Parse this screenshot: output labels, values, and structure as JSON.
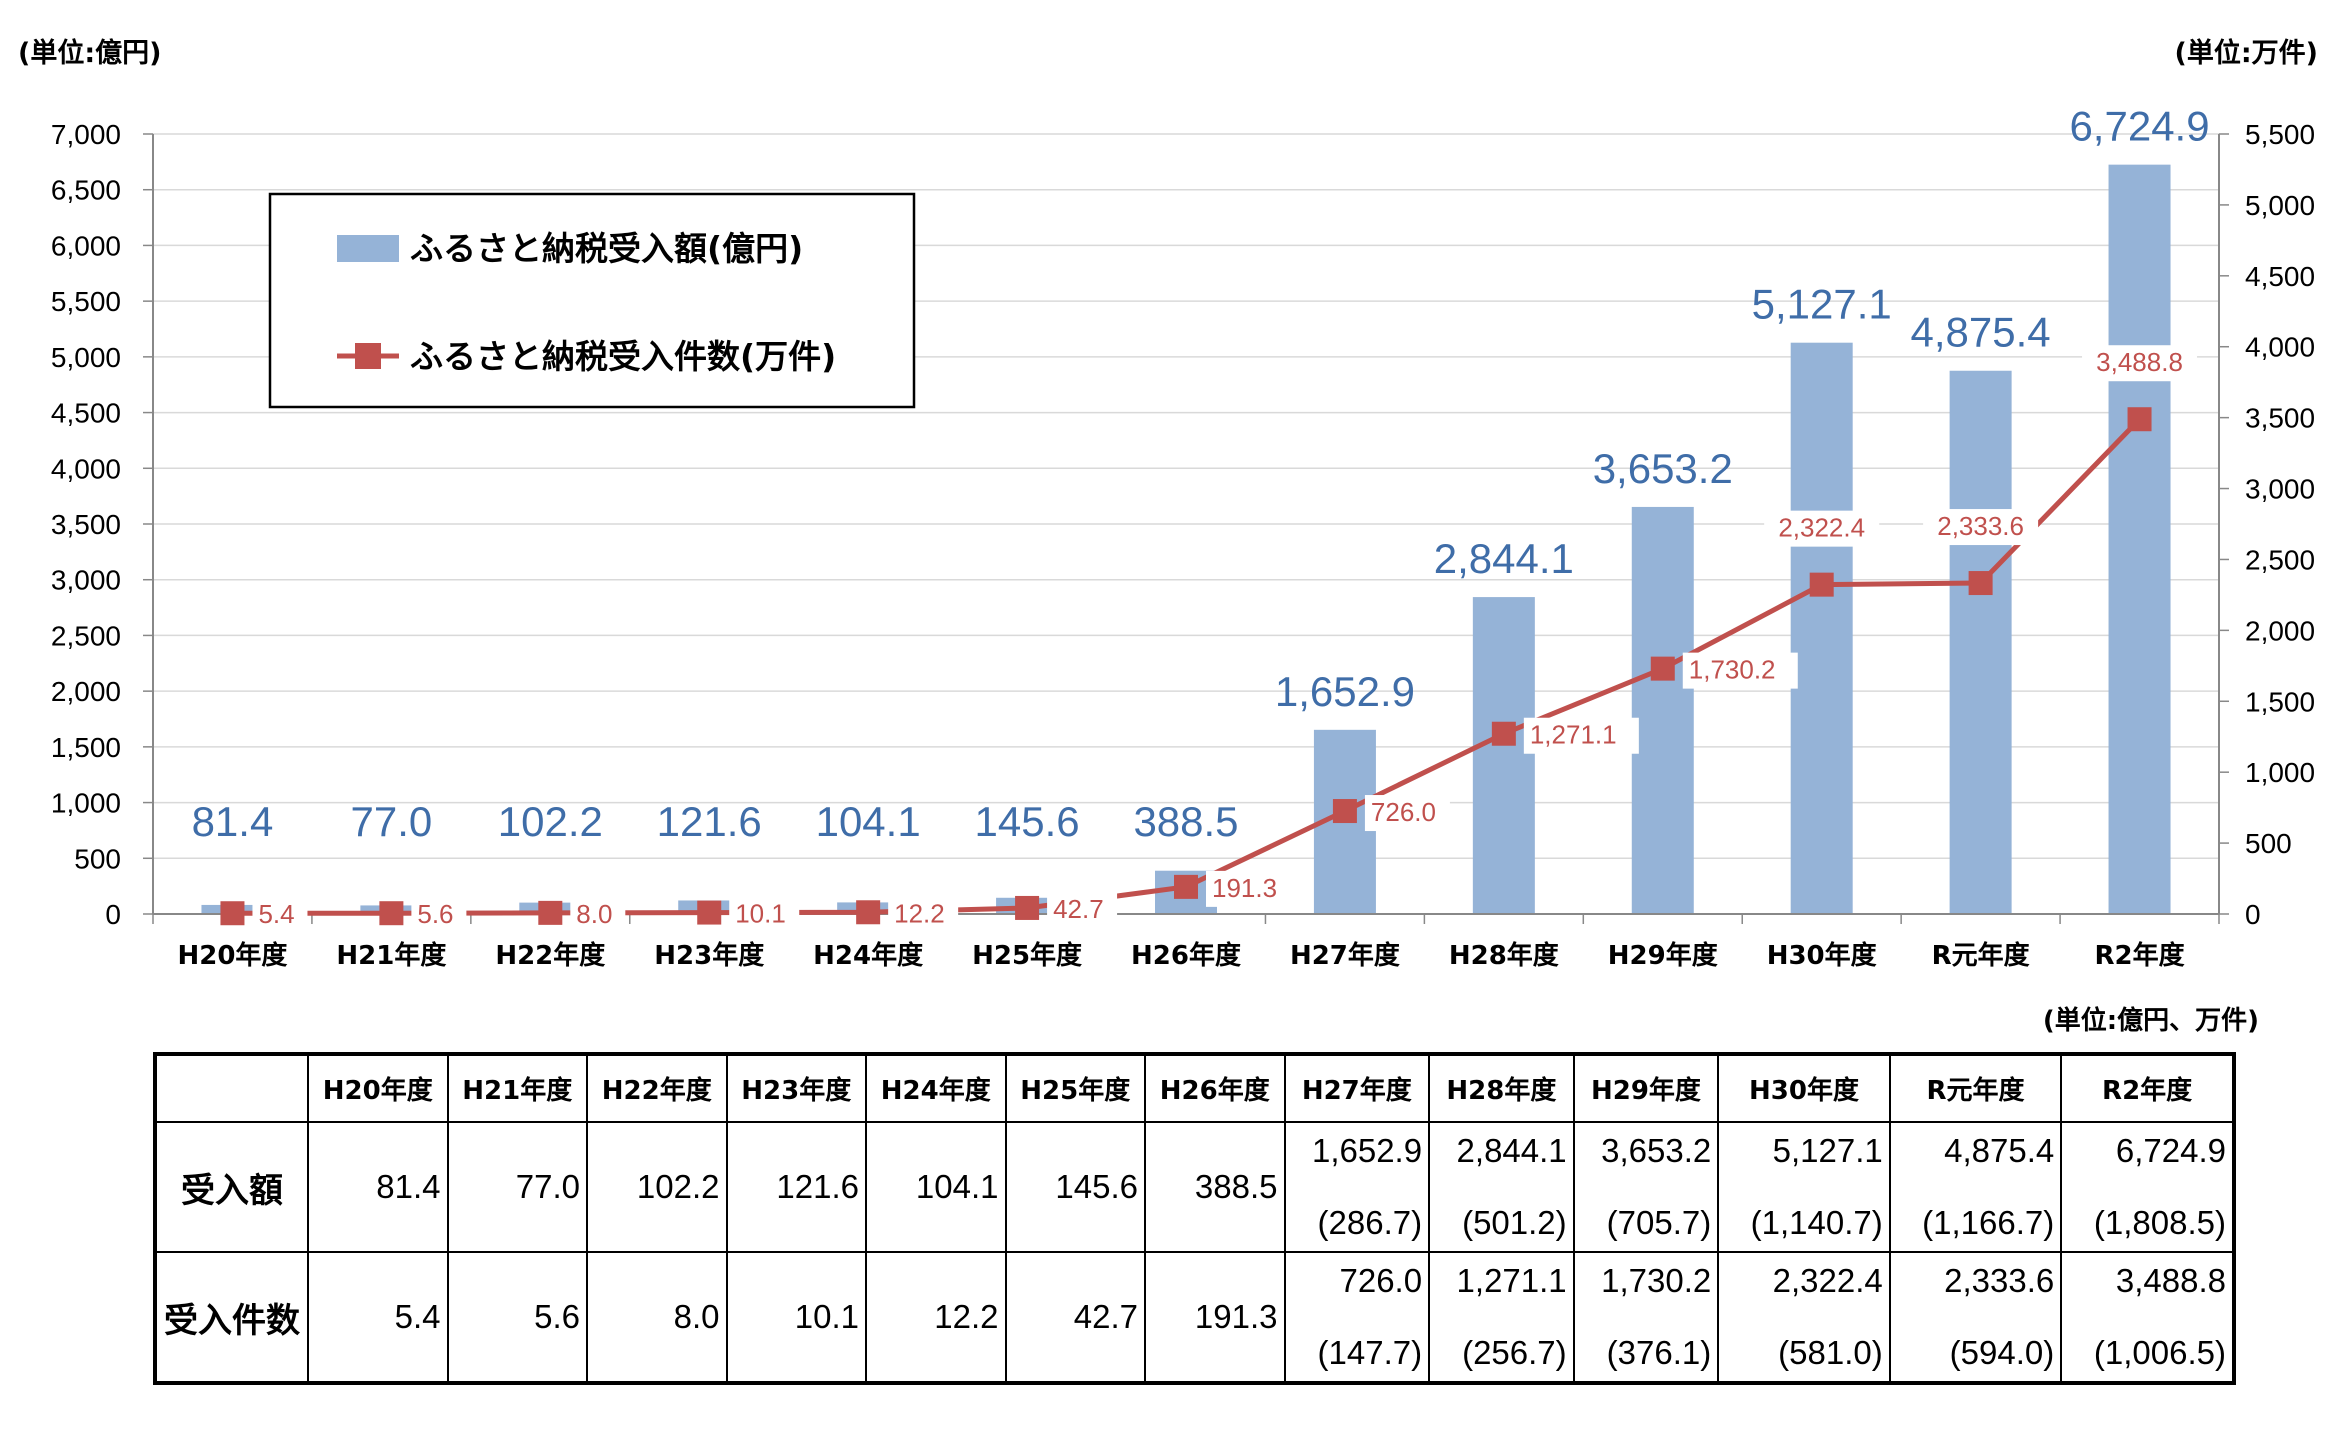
{
  "units": {
    "left": "(単位:億円)",
    "right": "(単位:万件)",
    "table": "(単位:億円、万件)"
  },
  "legend": {
    "bar": "ふるさと納税受入額(億円)",
    "line": "ふるさと納税受入件数(万件)"
  },
  "colors": {
    "bar": "#95B3D7",
    "bar_label": "#3F6DA8",
    "line": "#C0504D",
    "line_label": "#C0504D"
  },
  "chart_data": {
    "type": "bar",
    "categories": [
      "H20年度",
      "H21年度",
      "H22年度",
      "H23年度",
      "H24年度",
      "H25年度",
      "H26年度",
      "H27年度",
      "H28年度",
      "H29年度",
      "H30年度",
      "R元年度",
      "R2年度"
    ],
    "series": [
      {
        "name": "ふるさと納税受入額(億円)",
        "type": "bar",
        "axis": "left",
        "values": [
          81.4,
          77.0,
          102.2,
          121.6,
          104.1,
          145.6,
          388.5,
          1652.9,
          2844.1,
          3653.2,
          5127.1,
          4875.4,
          6724.9
        ],
        "labels": [
          "81.4",
          "77.0",
          "102.2",
          "121.6",
          "104.1",
          "145.6",
          "388.5",
          "1,652.9",
          "2,844.1",
          "3,653.2",
          "5,127.1",
          "4,875.4",
          "6,724.9"
        ]
      },
      {
        "name": "ふるさと納税受入件数(万件)",
        "type": "line",
        "axis": "right",
        "values": [
          5.4,
          5.6,
          8.0,
          10.1,
          12.2,
          42.7,
          191.3,
          726.0,
          1271.1,
          1730.2,
          2322.4,
          2333.6,
          3488.8
        ],
        "labels": [
          "5.4",
          "5.6",
          "8.0",
          "10.1",
          "12.2",
          "42.7",
          "191.3",
          "726.0",
          "1,271.1",
          "1,730.2",
          "2,322.4",
          "2,333.6",
          "3,488.8"
        ]
      }
    ],
    "y_left": {
      "range": [
        0,
        7000
      ],
      "ticks": [
        "0",
        "500",
        "1,000",
        "1,500",
        "2,000",
        "2,500",
        "3,000",
        "3,500",
        "4,000",
        "4,500",
        "5,000",
        "5,500",
        "6,000",
        "6,500",
        "7,000"
      ]
    },
    "y_right": {
      "range": [
        0,
        5500
      ],
      "ticks": [
        "0",
        "500",
        "1,000",
        "1,500",
        "2,000",
        "2,500",
        "3,000",
        "3,500",
        "4,000",
        "4,500",
        "5,000",
        "5,500"
      ]
    },
    "grid": true,
    "legend_position": "top-left"
  },
  "table": {
    "headers": [
      "H20年度",
      "H21年度",
      "H22年度",
      "H23年度",
      "H24年度",
      "H25年度",
      "H26年度",
      "H27年度",
      "H28年度",
      "H29年度",
      "H30年度",
      "R元年度",
      "R2年度"
    ],
    "rows": [
      {
        "label": "受入額",
        "values": [
          "81.4",
          "77.0",
          "102.2",
          "121.6",
          "104.1",
          "145.6",
          "388.5",
          "1,652.9",
          "2,844.1",
          "3,653.2",
          "5,127.1",
          "4,875.4",
          "6,724.9"
        ],
        "subs": [
          "",
          "",
          "",
          "",
          "",
          "",
          "",
          "(286.7)",
          "(501.2)",
          "(705.7)",
          "(1,140.7)",
          "(1,166.7)",
          "(1,808.5)"
        ]
      },
      {
        "label": "受入件数",
        "values": [
          "5.4",
          "5.6",
          "8.0",
          "10.1",
          "12.2",
          "42.7",
          "191.3",
          "726.0",
          "1,271.1",
          "1,730.2",
          "2,322.4",
          "2,333.6",
          "3,488.8"
        ],
        "subs": [
          "",
          "",
          "",
          "",
          "",
          "",
          "",
          "(147.7)",
          "(256.7)",
          "(376.1)",
          "(581.0)",
          "(594.0)",
          "(1,006.5)"
        ]
      }
    ]
  }
}
